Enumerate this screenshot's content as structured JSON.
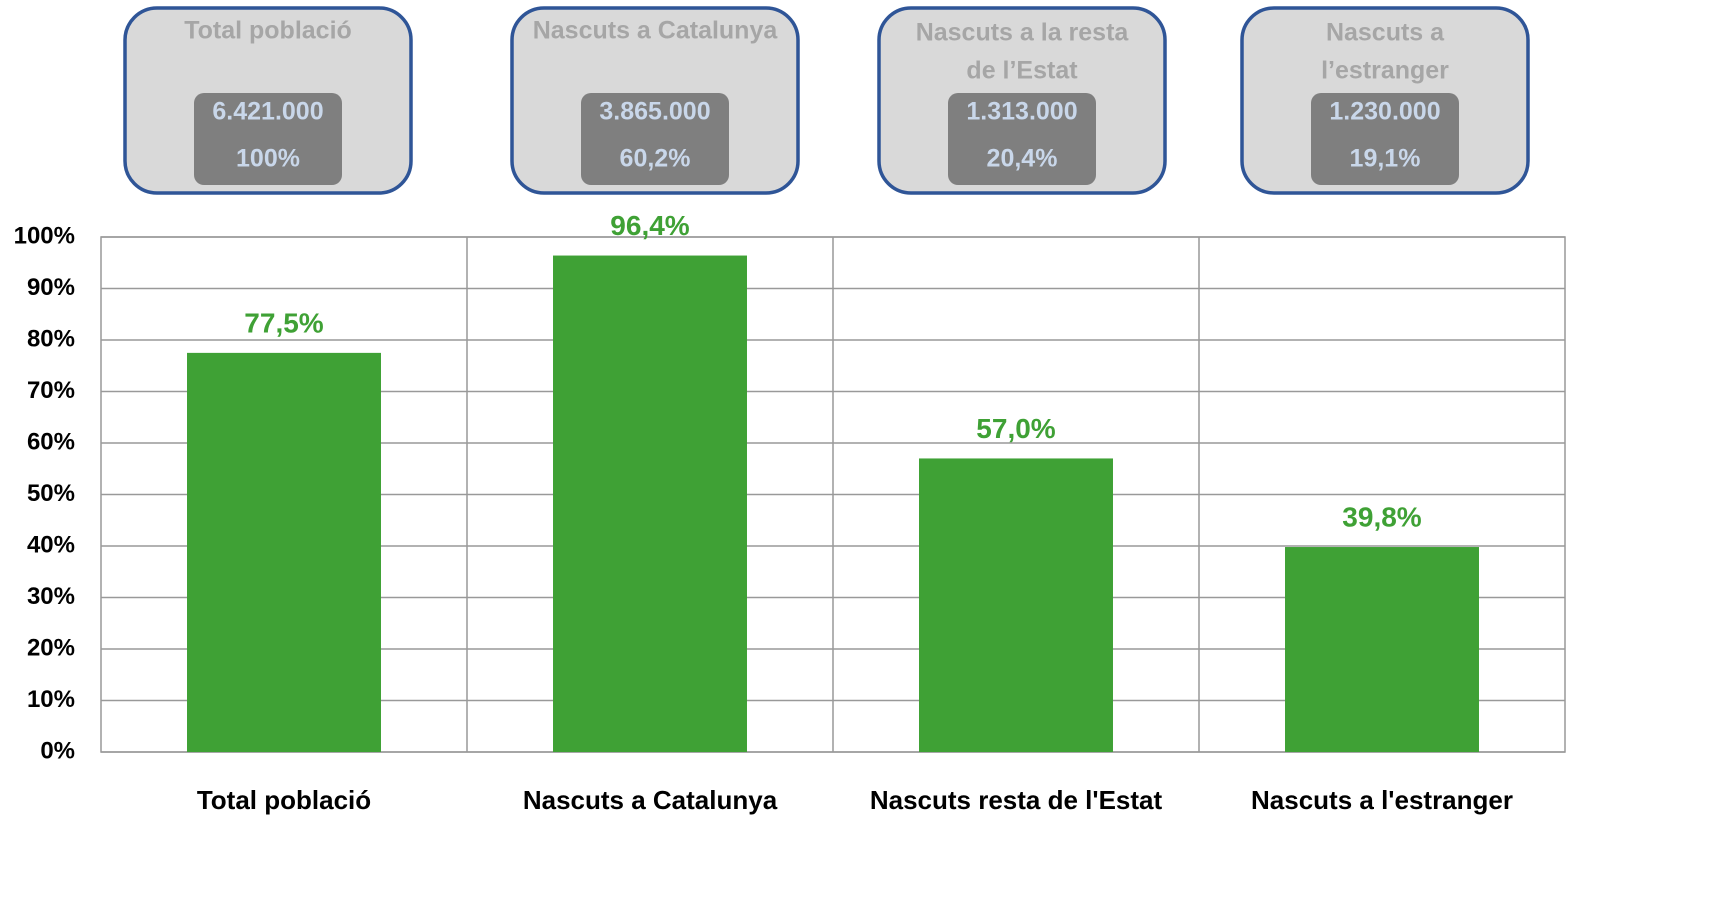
{
  "boxes": [
    {
      "title": [
        "Total població"
      ],
      "count": "6.421.000",
      "share": "100%"
    },
    {
      "title": [
        "Nascuts a Catalunya"
      ],
      "count": "3.865.000",
      "share": "60,2%"
    },
    {
      "title": [
        "Nascuts a la resta",
        "de l’Estat"
      ],
      "count": "1.313.000",
      "share": "20,4%"
    },
    {
      "title": [
        "Nascuts a",
        "l’estranger"
      ],
      "count": "1.230.000",
      "share": "19,1%"
    }
  ],
  "chart_data": {
    "type": "bar",
    "categories": [
      "Total població",
      "Nascuts a Catalunya",
      "Nascuts resta de l'Estat",
      "Nascuts a l'estranger"
    ],
    "values": [
      77.5,
      96.4,
      57.0,
      39.8
    ],
    "value_labels": [
      "77,5%",
      "96,4%",
      "57,0%",
      "39,8%"
    ],
    "color": "#3fa135",
    "ylim": [
      0,
      100
    ],
    "yticks": [
      {
        "value": 0,
        "label": "0%"
      },
      {
        "value": 10,
        "label": "10%"
      },
      {
        "value": 20,
        "label": "20%"
      },
      {
        "value": 30,
        "label": "30%"
      },
      {
        "value": 40,
        "label": "40%"
      },
      {
        "value": 50,
        "label": "50%"
      },
      {
        "value": 60,
        "label": "60%"
      },
      {
        "value": 70,
        "label": "70%"
      },
      {
        "value": 80,
        "label": "80%"
      },
      {
        "value": 90,
        "label": "90%"
      },
      {
        "value": 100,
        "label": "100%"
      }
    ],
    "grid": true
  }
}
